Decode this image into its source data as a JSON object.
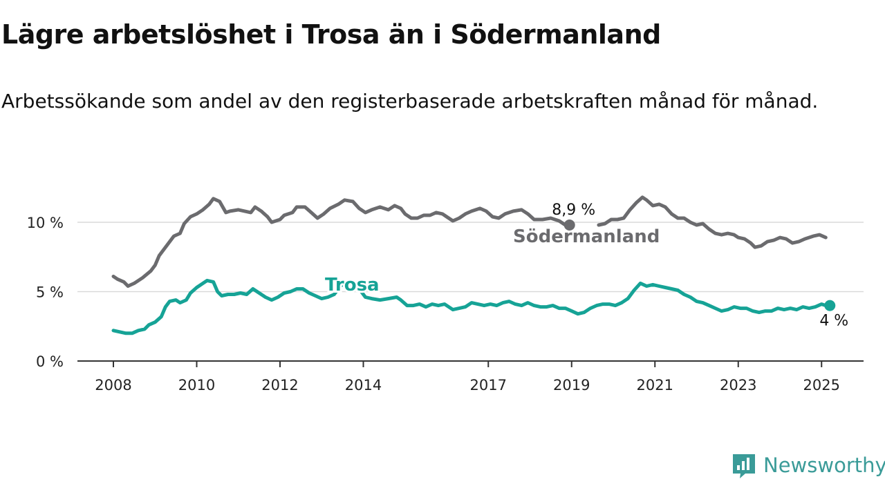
{
  "title": "Lägre arbetslöshet i Trosa än i Södermanland",
  "subtitle": "Arbetssökande som andel av den registerbaserade arbetskraften månad för månad.",
  "brand": "Newsworthy",
  "chart_data": {
    "type": "line",
    "ylim": [
      0,
      12
    ],
    "yticks": [
      {
        "value": 0,
        "label": "0 %"
      },
      {
        "value": 5,
        "label": "5 %"
      },
      {
        "value": 10,
        "label": "10 %"
      }
    ],
    "xlim": [
      2008,
      2026
    ],
    "xticks": [
      {
        "value": 2008,
        "label": "2008"
      },
      {
        "value": 2010,
        "label": "2010"
      },
      {
        "value": 2012,
        "label": "2012"
      },
      {
        "value": 2014,
        "label": "2014"
      },
      {
        "value": 2017,
        "label": "2017"
      },
      {
        "value": 2019,
        "label": "2019"
      },
      {
        "value": 2021,
        "label": "2021"
      },
      {
        "value": 2023,
        "label": "2023"
      },
      {
        "value": 2025,
        "label": "2025"
      }
    ],
    "grid": true,
    "series": [
      {
        "name": "Södermanland",
        "color": "#6b6b6e",
        "end_label": "8,9 %",
        "points": [
          [
            2008.0,
            6.1
          ],
          [
            2008.1,
            5.9
          ],
          [
            2008.25,
            5.7
          ],
          [
            2008.35,
            5.4
          ],
          [
            2008.5,
            5.6
          ],
          [
            2008.7,
            6.0
          ],
          [
            2008.9,
            6.5
          ],
          [
            2009.0,
            6.9
          ],
          [
            2009.1,
            7.6
          ],
          [
            2009.3,
            8.4
          ],
          [
            2009.45,
            9.0
          ],
          [
            2009.6,
            9.2
          ],
          [
            2009.7,
            9.9
          ],
          [
            2009.85,
            10.4
          ],
          [
            2010.0,
            10.6
          ],
          [
            2010.15,
            10.9
          ],
          [
            2010.3,
            11.3
          ],
          [
            2010.4,
            11.7
          ],
          [
            2010.55,
            11.5
          ],
          [
            2010.7,
            10.7
          ],
          [
            2010.8,
            10.8
          ],
          [
            2011.0,
            10.9
          ],
          [
            2011.15,
            10.8
          ],
          [
            2011.3,
            10.7
          ],
          [
            2011.4,
            11.1
          ],
          [
            2011.55,
            10.8
          ],
          [
            2011.7,
            10.4
          ],
          [
            2011.8,
            10.0
          ],
          [
            2012.0,
            10.2
          ],
          [
            2012.1,
            10.5
          ],
          [
            2012.3,
            10.7
          ],
          [
            2012.4,
            11.1
          ],
          [
            2012.6,
            11.1
          ],
          [
            2012.75,
            10.7
          ],
          [
            2012.9,
            10.3
          ],
          [
            2013.05,
            10.6
          ],
          [
            2013.2,
            11.0
          ],
          [
            2013.4,
            11.3
          ],
          [
            2013.55,
            11.6
          ],
          [
            2013.75,
            11.5
          ],
          [
            2013.9,
            11.0
          ],
          [
            2014.05,
            10.7
          ],
          [
            2014.2,
            10.9
          ],
          [
            2014.4,
            11.1
          ],
          [
            2014.6,
            10.9
          ],
          [
            2014.75,
            11.2
          ],
          [
            2014.9,
            11.0
          ],
          [
            2015.0,
            10.6
          ],
          [
            2015.15,
            10.3
          ],
          [
            2015.3,
            10.3
          ],
          [
            2015.45,
            10.5
          ],
          [
            2015.6,
            10.5
          ],
          [
            2015.75,
            10.7
          ],
          [
            2015.9,
            10.6
          ],
          [
            2016.0,
            10.4
          ],
          [
            2016.15,
            10.1
          ],
          [
            2016.3,
            10.3
          ],
          [
            2016.45,
            10.6
          ],
          [
            2016.6,
            10.8
          ],
          [
            2016.8,
            11.0
          ],
          [
            2016.95,
            10.8
          ],
          [
            2017.1,
            10.4
          ],
          [
            2017.25,
            10.3
          ],
          [
            2017.4,
            10.6
          ],
          [
            2017.6,
            10.8
          ],
          [
            2017.8,
            10.9
          ],
          [
            2017.95,
            10.6
          ],
          [
            2018.1,
            10.2
          ],
          [
            2018.3,
            10.2
          ],
          [
            2018.5,
            10.3
          ],
          [
            2018.7,
            10.1
          ],
          [
            2018.85,
            9.8
          ]
        ]
      },
      {
        "name": "Södermanland",
        "color": "#6b6b6e",
        "points": [
          [
            2019.65,
            9.8
          ],
          [
            2019.8,
            9.9
          ],
          [
            2019.95,
            10.2
          ],
          [
            2020.1,
            10.2
          ],
          [
            2020.25,
            10.3
          ],
          [
            2020.4,
            10.9
          ],
          [
            2020.55,
            11.4
          ],
          [
            2020.7,
            11.8
          ],
          [
            2020.8,
            11.6
          ],
          [
            2020.95,
            11.2
          ],
          [
            2021.1,
            11.3
          ],
          [
            2021.25,
            11.1
          ],
          [
            2021.4,
            10.6
          ],
          [
            2021.55,
            10.3
          ],
          [
            2021.7,
            10.3
          ],
          [
            2021.85,
            10.0
          ],
          [
            2022.0,
            9.8
          ],
          [
            2022.15,
            9.9
          ],
          [
            2022.3,
            9.5
          ],
          [
            2022.45,
            9.2
          ],
          [
            2022.6,
            9.1
          ],
          [
            2022.75,
            9.2
          ],
          [
            2022.9,
            9.1
          ],
          [
            2023.0,
            8.9
          ],
          [
            2023.15,
            8.8
          ],
          [
            2023.3,
            8.5
          ],
          [
            2023.4,
            8.2
          ],
          [
            2023.55,
            8.3
          ],
          [
            2023.7,
            8.6
          ],
          [
            2023.85,
            8.7
          ],
          [
            2024.0,
            8.9
          ],
          [
            2024.15,
            8.8
          ],
          [
            2024.3,
            8.5
          ],
          [
            2024.45,
            8.6
          ],
          [
            2024.6,
            8.8
          ],
          [
            2024.8,
            9.0
          ],
          [
            2024.95,
            9.1
          ],
          [
            2025.1,
            8.9
          ]
        ]
      },
      {
        "name": "Trosa",
        "color": "#16a396",
        "end_label": "4 %",
        "points": [
          [
            2008.0,
            2.2
          ],
          [
            2008.15,
            2.1
          ],
          [
            2008.3,
            2.0
          ],
          [
            2008.45,
            2.0
          ],
          [
            2008.6,
            2.2
          ],
          [
            2008.75,
            2.3
          ],
          [
            2008.85,
            2.6
          ],
          [
            2009.0,
            2.8
          ],
          [
            2009.15,
            3.2
          ],
          [
            2009.25,
            3.9
          ],
          [
            2009.35,
            4.3
          ],
          [
            2009.5,
            4.4
          ],
          [
            2009.6,
            4.2
          ],
          [
            2009.75,
            4.4
          ],
          [
            2009.85,
            4.9
          ],
          [
            2010.0,
            5.3
          ],
          [
            2010.15,
            5.6
          ],
          [
            2010.25,
            5.8
          ],
          [
            2010.4,
            5.7
          ],
          [
            2010.5,
            5.0
          ],
          [
            2010.6,
            4.7
          ],
          [
            2010.75,
            4.8
          ],
          [
            2010.9,
            4.8
          ],
          [
            2011.05,
            4.9
          ],
          [
            2011.2,
            4.8
          ],
          [
            2011.35,
            5.2
          ],
          [
            2011.5,
            4.9
          ],
          [
            2011.65,
            4.6
          ],
          [
            2011.8,
            4.4
          ],
          [
            2011.95,
            4.6
          ],
          [
            2012.1,
            4.9
          ],
          [
            2012.25,
            5.0
          ],
          [
            2012.4,
            5.2
          ],
          [
            2012.55,
            5.2
          ],
          [
            2012.7,
            4.9
          ],
          [
            2012.85,
            4.7
          ],
          [
            2013.0,
            4.5
          ],
          [
            2013.15,
            4.6
          ],
          [
            2013.3,
            4.8
          ],
          [
            2013.45,
            5.4
          ],
          [
            2013.6,
            5.7
          ],
          [
            2013.9,
            5.2
          ],
          [
            2014.05,
            4.6
          ],
          [
            2014.2,
            4.5
          ],
          [
            2014.4,
            4.4
          ],
          [
            2014.6,
            4.5
          ],
          [
            2014.8,
            4.6
          ],
          [
            2014.9,
            4.4
          ],
          [
            2015.05,
            4.0
          ],
          [
            2015.2,
            4.0
          ],
          [
            2015.35,
            4.1
          ],
          [
            2015.5,
            3.9
          ],
          [
            2015.65,
            4.1
          ],
          [
            2015.8,
            4.0
          ],
          [
            2015.95,
            4.1
          ],
          [
            2016.05,
            3.9
          ],
          [
            2016.15,
            3.7
          ],
          [
            2016.3,
            3.8
          ],
          [
            2016.45,
            3.9
          ],
          [
            2016.6,
            4.2
          ],
          [
            2016.75,
            4.1
          ],
          [
            2016.9,
            4.0
          ],
          [
            2017.05,
            4.1
          ],
          [
            2017.2,
            4.0
          ],
          [
            2017.35,
            4.2
          ],
          [
            2017.5,
            4.3
          ],
          [
            2017.65,
            4.1
          ],
          [
            2017.8,
            4.0
          ],
          [
            2017.95,
            4.2
          ],
          [
            2018.1,
            4.0
          ],
          [
            2018.25,
            3.9
          ],
          [
            2018.4,
            3.9
          ],
          [
            2018.55,
            4.0
          ],
          [
            2018.7,
            3.8
          ],
          [
            2018.85,
            3.8
          ],
          [
            2019.0,
            3.6
          ],
          [
            2019.15,
            3.4
          ],
          [
            2019.3,
            3.5
          ],
          [
            2019.45,
            3.8
          ],
          [
            2019.6,
            4.0
          ],
          [
            2019.75,
            4.1
          ],
          [
            2019.9,
            4.1
          ],
          [
            2020.05,
            4.0
          ],
          [
            2020.2,
            4.2
          ],
          [
            2020.35,
            4.5
          ],
          [
            2020.5,
            5.1
          ],
          [
            2020.65,
            5.6
          ],
          [
            2020.8,
            5.4
          ],
          [
            2020.95,
            5.5
          ],
          [
            2021.1,
            5.4
          ],
          [
            2021.25,
            5.3
          ],
          [
            2021.4,
            5.2
          ],
          [
            2021.55,
            5.1
          ],
          [
            2021.7,
            4.8
          ],
          [
            2021.85,
            4.6
          ],
          [
            2022.0,
            4.3
          ],
          [
            2022.15,
            4.2
          ],
          [
            2022.3,
            4.0
          ],
          [
            2022.45,
            3.8
          ],
          [
            2022.6,
            3.6
          ],
          [
            2022.75,
            3.7
          ],
          [
            2022.9,
            3.9
          ],
          [
            2023.05,
            3.8
          ],
          [
            2023.2,
            3.8
          ],
          [
            2023.35,
            3.6
          ],
          [
            2023.5,
            3.5
          ],
          [
            2023.65,
            3.6
          ],
          [
            2023.8,
            3.6
          ],
          [
            2023.95,
            3.8
          ],
          [
            2024.1,
            3.7
          ],
          [
            2024.25,
            3.8
          ],
          [
            2024.4,
            3.7
          ],
          [
            2024.55,
            3.9
          ],
          [
            2024.7,
            3.8
          ],
          [
            2024.85,
            3.9
          ],
          [
            2025.0,
            4.1
          ],
          [
            2025.1,
            4.0
          ]
        ]
      }
    ]
  }
}
